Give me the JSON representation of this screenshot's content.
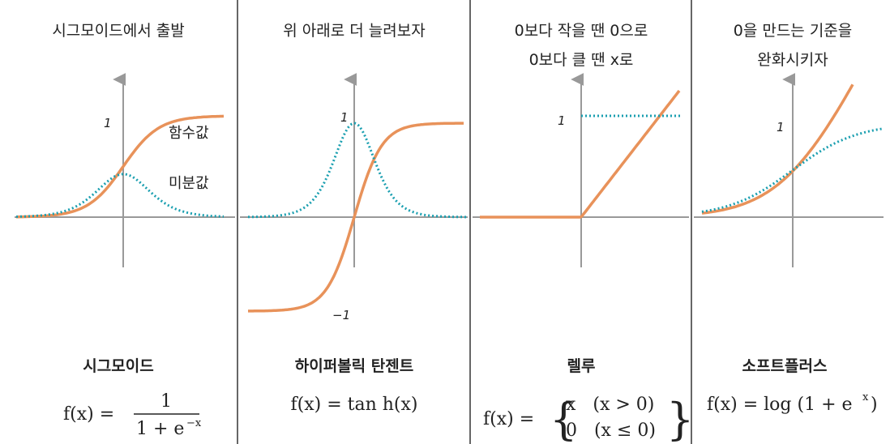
{
  "panels": [
    {
      "title": [
        "시그모이드에서 출발"
      ],
      "axis_labels": [
        "1"
      ],
      "curve_labels": [
        "함수값",
        "미분값"
      ],
      "name": "시그모이드",
      "formula": {
        "lhs": "f(x) =",
        "numerator": "1",
        "denominator": "1 + e",
        "exponent": "−x"
      }
    },
    {
      "title": [
        "위 아래로 더 늘려보자"
      ],
      "axis_labels": [
        "1",
        "−1"
      ],
      "name": "하이퍼볼릭 탄젠트",
      "formula": {
        "lhs": "f(x) = tan h(x)"
      }
    },
    {
      "title": [
        "0보다 작을 땐 0으로",
        "0보다 클 땐 x로"
      ],
      "axis_labels": [
        "1"
      ],
      "name": "렐루",
      "formula": {
        "lhs": "f(x) =",
        "cases": [
          "x   (x > 0)",
          "0   (x ≤ 0)"
        ]
      }
    },
    {
      "title": [
        "0을 만드는 기준을",
        "완화시키자"
      ],
      "axis_labels": [
        "1"
      ],
      "name": "소프트플러스",
      "formula": {
        "lhs": "f(x) = log (1 + e",
        "exponent": "x",
        "rhs": ")"
      }
    }
  ]
}
